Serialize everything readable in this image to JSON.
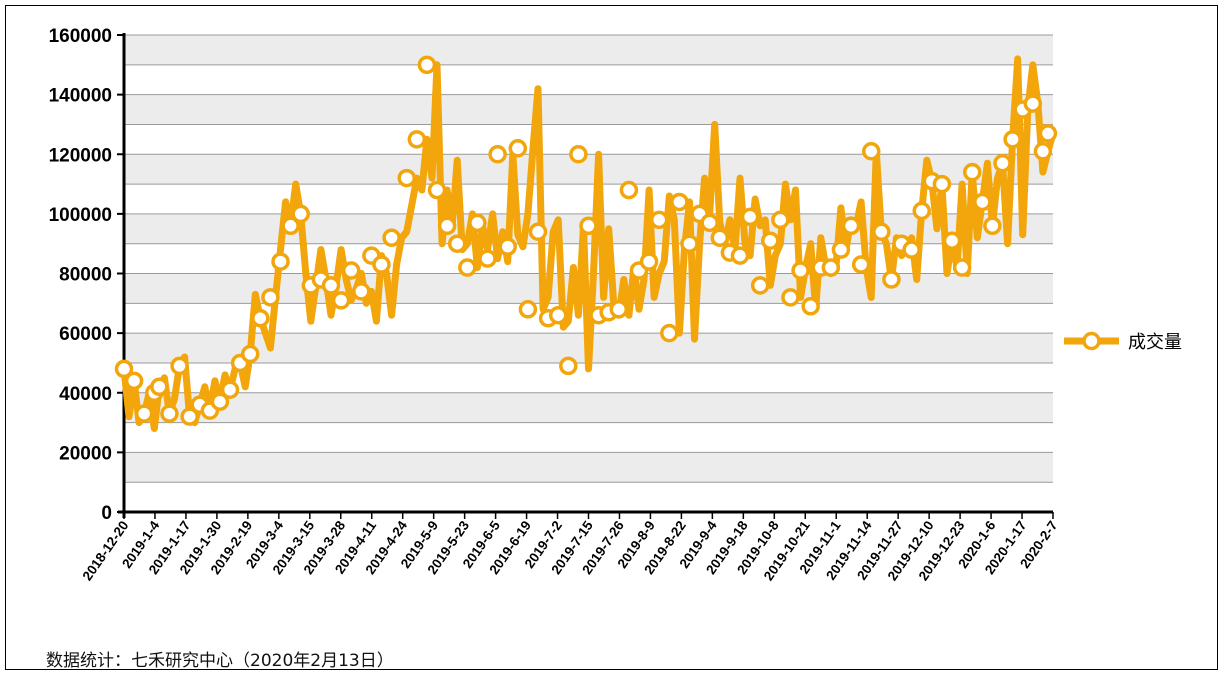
{
  "chart_data": {
    "type": "line",
    "title": "",
    "xlabel": "",
    "ylabel": "",
    "ylim": [
      0,
      160000
    ],
    "y_ticks": [
      0,
      20000,
      40000,
      60000,
      80000,
      100000,
      120000,
      140000,
      160000
    ],
    "y_tick_labels": [
      "0",
      "20000",
      "40000",
      "60000",
      "80000",
      "100000",
      "120000",
      "140000",
      "160000"
    ],
    "grid": "horizontal, alternating grey bands",
    "legend_position": "right",
    "x_tick_labels": [
      "2018-12-20",
      "2019-1-4",
      "2019-1-17",
      "2019-1-30",
      "2019-2-19",
      "2019-3-4",
      "2019-3-15",
      "2019-3-28",
      "2019-4-11",
      "2019-4-24",
      "2019-5-9",
      "2019-5-23",
      "2019-6-5",
      "2019-6-19",
      "2019-7-2",
      "2019-7-15",
      "2019-7-26",
      "2019-8-9",
      "2019-8-22",
      "2019-9-4",
      "2019-9-18",
      "2019-10-8",
      "2019-10-21",
      "2019-11-1",
      "2019-11-14",
      "2019-11-27",
      "2019-12-10",
      "2019-12-23",
      "2020-1-6",
      "2020-1-17",
      "2020-2-7"
    ],
    "series": [
      {
        "name": "成交量",
        "color": "#F2A60C",
        "values": [
          48000,
          32000,
          44000,
          30000,
          33000,
          40000,
          28000,
          42000,
          45000,
          33000,
          38000,
          49000,
          52000,
          32000,
          30000,
          36000,
          42000,
          34000,
          44000,
          37000,
          46000,
          41000,
          48000,
          50000,
          42000,
          53000,
          73000,
          65000,
          60000,
          55000,
          72000,
          88000,
          104000,
          96000,
          110000,
          100000,
          80000,
          64000,
          76000,
          88000,
          78000,
          66000,
          76000,
          88000,
          78000,
          71000,
          75000,
          80000,
          70000,
          74000,
          64000,
          86000,
          80000,
          66000,
          83000,
          92000,
          94000,
          103000,
          112000,
          108000,
          125000,
          112000,
          150000,
          90000,
          108000,
          96000,
          118000,
          88000,
          90000,
          100000,
          82000,
          96000,
          88000,
          100000,
          85000,
          94000,
          84000,
          120000,
          93000,
          89000,
          100000,
          122000,
          142000,
          68000,
          72000,
          94000,
          98000,
          62000,
          64000,
          82000,
          66000,
          96000,
          48000,
          80000,
          120000,
          72000,
          95000,
          70000,
          66000,
          78000,
          66000,
          82000,
          68000,
          78000,
          108000,
          72000,
          80000,
          84000,
          106000,
          98000,
          60000,
          88000,
          104000,
          58000,
          90000,
          112000,
          100000,
          130000,
          97000,
          90000,
          98000,
          88000,
          112000,
          90000,
          86000,
          105000,
          96000,
          98000,
          76000,
          86000,
          90000,
          110000,
          98000,
          108000,
          72000,
          82000,
          90000,
          68000,
          92000,
          82000,
          80000,
          82000,
          102000,
          88000,
          98000,
          96000,
          104000,
          82000,
          72000,
          121000,
          94000,
          90000,
          78000,
          92000,
          86000,
          88000,
          92000,
          78000,
          101000,
          118000,
          111000,
          95000,
          110000,
          80000,
          91000,
          82000,
          110000,
          80000,
          114000,
          92000,
          104000,
          117000,
          96000,
          112000,
          117000,
          90000,
          125000,
          152000,
          93000,
          135000,
          150000,
          137000,
          114000,
          121000,
          127000
        ]
      }
    ],
    "markers": [
      {
        "x": 0,
        "y": 48000
      },
      {
        "x": 2,
        "y": 44000
      },
      {
        "x": 4,
        "y": 33000
      },
      {
        "x": 6,
        "y": 40000
      },
      {
        "x": 7,
        "y": 42000
      },
      {
        "x": 9,
        "y": 33000
      },
      {
        "x": 11,
        "y": 49000
      },
      {
        "x": 13,
        "y": 32000
      },
      {
        "x": 15,
        "y": 36000
      },
      {
        "x": 17,
        "y": 34000
      },
      {
        "x": 19,
        "y": 37000
      },
      {
        "x": 21,
        "y": 41000
      },
      {
        "x": 23,
        "y": 50000
      },
      {
        "x": 25,
        "y": 53000
      },
      {
        "x": 27,
        "y": 65000
      },
      {
        "x": 29,
        "y": 72000
      },
      {
        "x": 31,
        "y": 84000
      },
      {
        "x": 33,
        "y": 96000
      },
      {
        "x": 35,
        "y": 100000
      },
      {
        "x": 37,
        "y": 76000
      },
      {
        "x": 39,
        "y": 78000
      },
      {
        "x": 41,
        "y": 76000
      },
      {
        "x": 43,
        "y": 71000
      },
      {
        "x": 45,
        "y": 81000
      },
      {
        "x": 47,
        "y": 74000
      },
      {
        "x": 49,
        "y": 86000
      },
      {
        "x": 51,
        "y": 83000
      },
      {
        "x": 53,
        "y": 92000
      },
      {
        "x": 56,
        "y": 112000
      },
      {
        "x": 58,
        "y": 125000
      },
      {
        "x": 60,
        "y": 150000
      },
      {
        "x": 62,
        "y": 108000
      },
      {
        "x": 64,
        "y": 96000
      },
      {
        "x": 66,
        "y": 90000
      },
      {
        "x": 68,
        "y": 82000
      },
      {
        "x": 70,
        "y": 97000
      },
      {
        "x": 72,
        "y": 85000
      },
      {
        "x": 74,
        "y": 120000
      },
      {
        "x": 76,
        "y": 89000
      },
      {
        "x": 78,
        "y": 122000
      },
      {
        "x": 80,
        "y": 68000
      },
      {
        "x": 82,
        "y": 94000
      },
      {
        "x": 84,
        "y": 65000
      },
      {
        "x": 86,
        "y": 66000
      },
      {
        "x": 88,
        "y": 49000
      },
      {
        "x": 90,
        "y": 120000
      },
      {
        "x": 92,
        "y": 96000
      },
      {
        "x": 94,
        "y": 66000
      },
      {
        "x": 96,
        "y": 67000
      },
      {
        "x": 98,
        "y": 68000
      },
      {
        "x": 100,
        "y": 108000
      },
      {
        "x": 102,
        "y": 81000
      },
      {
        "x": 104,
        "y": 84000
      },
      {
        "x": 106,
        "y": 98000
      },
      {
        "x": 108,
        "y": 60000
      },
      {
        "x": 110,
        "y": 104000
      },
      {
        "x": 112,
        "y": 90000
      },
      {
        "x": 114,
        "y": 100000
      },
      {
        "x": 116,
        "y": 97000
      },
      {
        "x": 118,
        "y": 92000
      },
      {
        "x": 120,
        "y": 87000
      },
      {
        "x": 122,
        "y": 86000
      },
      {
        "x": 124,
        "y": 99000
      },
      {
        "x": 126,
        "y": 76000
      },
      {
        "x": 128,
        "y": 91000
      },
      {
        "x": 130,
        "y": 98000
      },
      {
        "x": 132,
        "y": 72000
      },
      {
        "x": 134,
        "y": 81000
      },
      {
        "x": 136,
        "y": 69000
      },
      {
        "x": 138,
        "y": 82000
      },
      {
        "x": 140,
        "y": 82000
      },
      {
        "x": 142,
        "y": 88000
      },
      {
        "x": 144,
        "y": 96000
      },
      {
        "x": 146,
        "y": 83000
      },
      {
        "x": 148,
        "y": 121000
      },
      {
        "x": 150,
        "y": 94000
      },
      {
        "x": 152,
        "y": 78000
      },
      {
        "x": 154,
        "y": 90000
      },
      {
        "x": 156,
        "y": 88000
      },
      {
        "x": 158,
        "y": 101000
      },
      {
        "x": 160,
        "y": 111000
      },
      {
        "x": 162,
        "y": 110000
      },
      {
        "x": 164,
        "y": 91000
      },
      {
        "x": 166,
        "y": 82000
      },
      {
        "x": 168,
        "y": 114000
      },
      {
        "x": 170,
        "y": 104000
      },
      {
        "x": 172,
        "y": 96000
      },
      {
        "x": 174,
        "y": 117000
      },
      {
        "x": 176,
        "y": 125000
      },
      {
        "x": 178,
        "y": 135000
      },
      {
        "x": 180,
        "y": 137000
      },
      {
        "x": 182,
        "y": 121000
      },
      {
        "x": 183,
        "y": 127000
      }
    ]
  },
  "source_note": "数据统计：七禾研究中心（2020年2月13日）"
}
